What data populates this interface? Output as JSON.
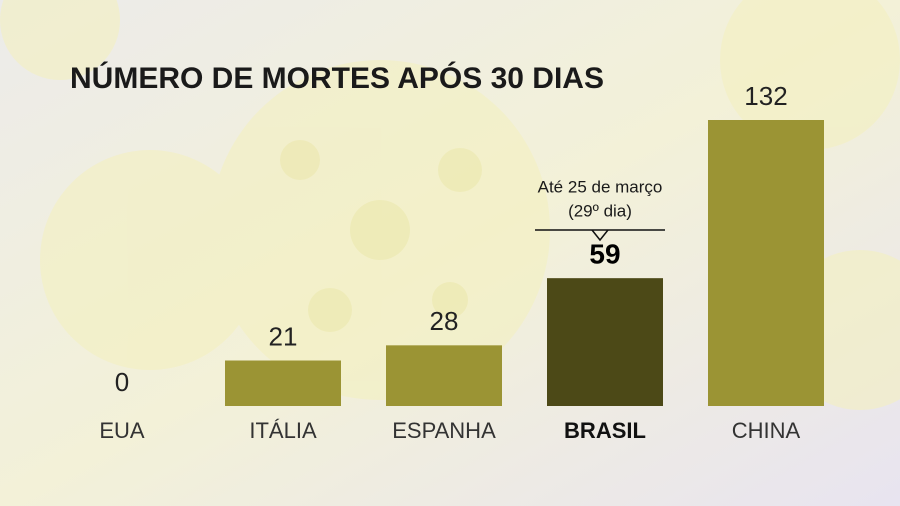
{
  "chart_data": {
    "type": "bar",
    "title": "NÚMERO DE MORTES APÓS 30 DIAS",
    "categories": [
      "EUA",
      "ITÁLIA",
      "ESPANHA",
      "BRASIL",
      "CHINA"
    ],
    "values": [
      0,
      21,
      28,
      59,
      132
    ],
    "colors": [
      "#9b9434",
      "#9b9434",
      "#9b9434",
      "#4c4917",
      "#9b9434"
    ],
    "annotation": [
      "Até 25 de março",
      "(29º dia)"
    ]
  }
}
